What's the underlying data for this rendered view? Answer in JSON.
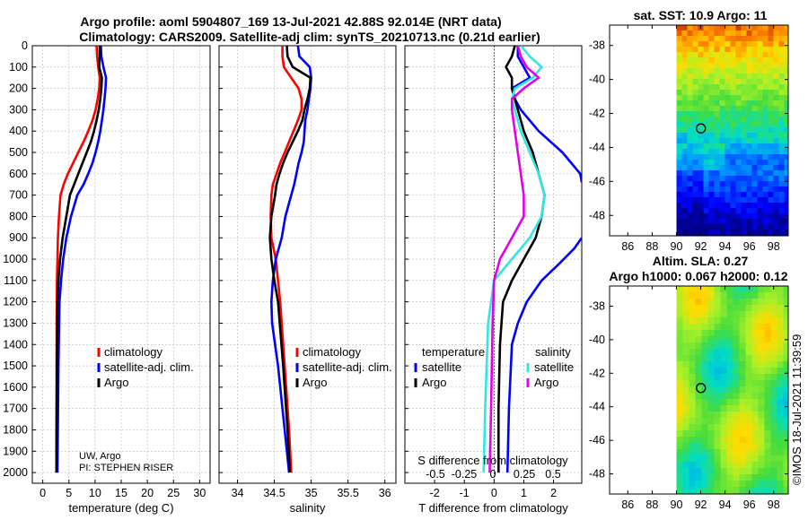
{
  "titles": {
    "line1": "Argo profile: aoml 5904807_169 13-Jul-2021 42.88S 92.014E (NRT data)",
    "line2": "Climatology: CARS2009. Satellite-adj clim: synTS_20210713.nc (0.21d earlier)"
  },
  "credit": {
    "line1": "UW, Argo",
    "line2": "PI: STEPHEN RISER"
  },
  "imos_stamp": "©IMOS 18-Jul-2021 11:39:59",
  "colors": {
    "climatology": "#ff0000",
    "satellite": "#0000ff",
    "argo": "#000000",
    "cyan": "#33e6e6",
    "magenta": "#e600e6"
  },
  "chart_data": [
    {
      "type": "line",
      "name": "temperature-profile",
      "xlabel": "temperature (deg C)",
      "ylabel": "",
      "xlim": [
        -2,
        32
      ],
      "ylim": [
        2050,
        0
      ],
      "xticks": [
        0,
        5,
        10,
        15,
        20,
        25,
        30
      ],
      "yticks": [
        0,
        100,
        200,
        300,
        400,
        500,
        600,
        700,
        800,
        900,
        1000,
        1100,
        1200,
        1300,
        1400,
        1500,
        1600,
        1700,
        1800,
        1900,
        2000
      ],
      "legend": [
        "climatology",
        "satellite-adj. clim.",
        "Argo"
      ],
      "series": [
        {
          "name": "climatology",
          "color": "#ff0000",
          "x": [
            10.3,
            10.4,
            10.6,
            10.9,
            10.8,
            10.5,
            10.1,
            9.5,
            8.7,
            7.8,
            6.8,
            5.8,
            4.8,
            4.0,
            3.4,
            3.1,
            2.9,
            2.8,
            2.7,
            2.65,
            2.6
          ],
          "y": [
            0,
            50,
            100,
            150,
            200,
            250,
            300,
            350,
            400,
            450,
            500,
            550,
            600,
            650,
            700,
            800,
            900,
            1000,
            1100,
            1300,
            2000
          ]
        },
        {
          "name": "satellite-adj. clim.",
          "color": "#0000ff",
          "x": [
            11.1,
            11.2,
            11.6,
            12.1,
            12.0,
            11.8,
            11.6,
            11.3,
            11.0,
            10.6,
            10.1,
            9.5,
            8.7,
            7.8,
            6.6,
            5.4,
            4.5,
            3.9,
            3.5,
            3.2,
            3.0,
            2.8
          ],
          "y": [
            0,
            50,
            100,
            150,
            200,
            250,
            300,
            350,
            400,
            450,
            500,
            550,
            600,
            650,
            700,
            800,
            900,
            1000,
            1100,
            1200,
            1500,
            2000
          ]
        },
        {
          "name": "Argo",
          "color": "#000000",
          "x": [
            10.9,
            10.9,
            10.8,
            11.3,
            11.2,
            11.0,
            10.7,
            10.3,
            9.8,
            9.2,
            8.4,
            7.6,
            6.8,
            6.0,
            5.2,
            4.5,
            3.8,
            3.3,
            3.0,
            2.8,
            2.7,
            2.6
          ],
          "y": [
            0,
            50,
            100,
            150,
            200,
            250,
            300,
            350,
            400,
            450,
            500,
            550,
            600,
            650,
            700,
            800,
            900,
            1000,
            1100,
            1200,
            1500,
            2000
          ]
        }
      ]
    },
    {
      "type": "line",
      "name": "salinity-profile",
      "xlabel": "salinity",
      "xlim": [
        33.75,
        36.15
      ],
      "ylim": [
        2050,
        0
      ],
      "xticks": [
        34,
        34.5,
        35,
        35.5,
        36
      ],
      "legend": [
        "climatology",
        "satellite-adj. clim.",
        "Argo"
      ],
      "series": [
        {
          "name": "climatology",
          "color": "#ff0000",
          "x": [
            34.61,
            34.61,
            34.63,
            34.73,
            34.83,
            34.87,
            34.87,
            34.82,
            34.76,
            34.7,
            34.64,
            34.58,
            34.53,
            34.48,
            34.46,
            34.45,
            34.46,
            34.52,
            34.58,
            34.64,
            34.7,
            34.73
          ],
          "y": [
            0,
            50,
            100,
            150,
            200,
            250,
            300,
            350,
            400,
            450,
            500,
            550,
            600,
            650,
            700,
            800,
            900,
            1000,
            1200,
            1500,
            1800,
            2000
          ]
        },
        {
          "name": "satellite-adj. clim.",
          "color": "#0000ff",
          "x": [
            34.82,
            34.84,
            34.98,
            35.0,
            34.99,
            34.97,
            34.95,
            34.92,
            34.91,
            34.9,
            34.87,
            34.83,
            34.8,
            34.77,
            34.73,
            34.65,
            34.6,
            34.52,
            34.48,
            34.46,
            34.47,
            34.55,
            34.64,
            34.7
          ],
          "y": [
            0,
            50,
            100,
            150,
            200,
            250,
            300,
            350,
            400,
            450,
            500,
            550,
            600,
            650,
            700,
            800,
            900,
            1000,
            1100,
            1200,
            1300,
            1500,
            1800,
            2000
          ]
        },
        {
          "name": "Argo",
          "color": "#000000",
          "x": [
            34.67,
            34.68,
            34.75,
            34.99,
            34.98,
            34.95,
            34.91,
            34.88,
            34.82,
            34.75,
            34.68,
            34.62,
            34.57,
            34.53,
            34.51,
            34.46,
            34.44,
            34.46,
            34.5,
            34.55,
            34.62,
            34.68,
            34.71
          ],
          "y": [
            0,
            50,
            100,
            150,
            200,
            250,
            300,
            350,
            400,
            450,
            500,
            550,
            600,
            650,
            700,
            800,
            900,
            1000,
            1100,
            1200,
            1500,
            1800,
            2000
          ]
        }
      ]
    },
    {
      "type": "line",
      "name": "difference-profile",
      "xlabel": "T difference from climatology",
      "xlabel_top": "S difference from climatology",
      "xlim": [
        -3,
        2.95
      ],
      "ylim": [
        2050,
        0
      ],
      "xticks": [
        -2,
        -1,
        0,
        1,
        2
      ],
      "xticks_salinity": [
        -0.5,
        -0.25,
        0,
        0.25,
        0.5
      ],
      "legend_left_title": "temperature",
      "legend_right_title": "salinity",
      "legend_entry_satellite": "satellite",
      "legend_entry_argo": "Argo",
      "series": [
        {
          "name": "T satellite",
          "color": "#0000ff",
          "x": [
            0.8,
            0.8,
            1.0,
            1.2,
            0.6,
            0.7,
            0.9,
            1.5,
            2.3,
            2.9,
            2.95
          ],
          "y": [
            0,
            50,
            100,
            150,
            200,
            250,
            300,
            400,
            500,
            600,
            640
          ]
        },
        {
          "name": "T satellite (deep)",
          "color": "#0000ff",
          "x": [
            2.95,
            2.7,
            2.2,
            1.6,
            1.1,
            0.8,
            0.6,
            0.5,
            0.45
          ],
          "y": [
            900,
            950,
            1020,
            1100,
            1200,
            1300,
            1400,
            1700,
            2000
          ]
        },
        {
          "name": "T Argo",
          "color": "#000000",
          "x": [
            0.7,
            0.6,
            0.4,
            0.6,
            0.6,
            0.7,
            0.8,
            1.0,
            1.3,
            1.5,
            1.7,
            1.6,
            1.4,
            1.0,
            0.6,
            0.3,
            0.2,
            0.15,
            0.15
          ],
          "y": [
            0,
            50,
            100,
            150,
            200,
            250,
            300,
            400,
            500,
            600,
            700,
            800,
            900,
            1000,
            1100,
            1200,
            1400,
            1700,
            2000
          ]
        },
        {
          "name": "S satellite",
          "color": "#33e6e6",
          "x": [
            0.9,
            1.2,
            1.6,
            1.3,
            0.7,
            0.6,
            0.7,
            0.9,
            1.2,
            1.5,
            1.7,
            1.6,
            1.2,
            0.6,
            0.0,
            -0.2,
            -0.3,
            -0.35
          ],
          "y": [
            0,
            50,
            100,
            150,
            200,
            250,
            300,
            400,
            500,
            600,
            700,
            800,
            900,
            1000,
            1100,
            1300,
            1700,
            2000
          ]
        },
        {
          "name": "S Argo",
          "color": "#e600e6",
          "x": [
            0.8,
            0.9,
            1.1,
            1.5,
            1.0,
            0.6,
            0.6,
            0.7,
            0.8,
            0.9,
            1.0,
            1.0,
            0.6,
            0.2,
            0.0,
            -0.05,
            -0.1,
            -0.15
          ],
          "y": [
            0,
            50,
            100,
            150,
            200,
            250,
            300,
            400,
            500,
            600,
            700,
            800,
            900,
            1000,
            1100,
            1300,
            1700,
            2000
          ]
        }
      ]
    },
    {
      "type": "heatmap",
      "name": "sst-map",
      "title": "sat. SST: 10.9 Argo: 11",
      "xticks": [
        86,
        88,
        90,
        92,
        94,
        96,
        98
      ],
      "yticks": [
        -38,
        -40,
        -42,
        -44,
        -46,
        -48
      ],
      "xlim": [
        84.5,
        99.2
      ],
      "ylim": [
        -36.8,
        -49.2
      ],
      "data_start_lon": 90,
      "argo_position": {
        "lon": 92.014,
        "lat": -42.88
      }
    },
    {
      "type": "heatmap",
      "name": "sla-map",
      "title_line1": "Altim. SLA: 0.27",
      "title_line2": "Argo h1000: 0.067 h2000: 0.12",
      "xticks": [
        86,
        88,
        90,
        92,
        94,
        96,
        98
      ],
      "yticks": [
        -38,
        -40,
        -42,
        -44,
        -46,
        -48
      ],
      "xlim": [
        84.5,
        99.2
      ],
      "ylim": [
        -36.8,
        -49.2
      ],
      "data_start_lon": 90,
      "argo_position": {
        "lon": 92.014,
        "lat": -42.88
      }
    }
  ]
}
